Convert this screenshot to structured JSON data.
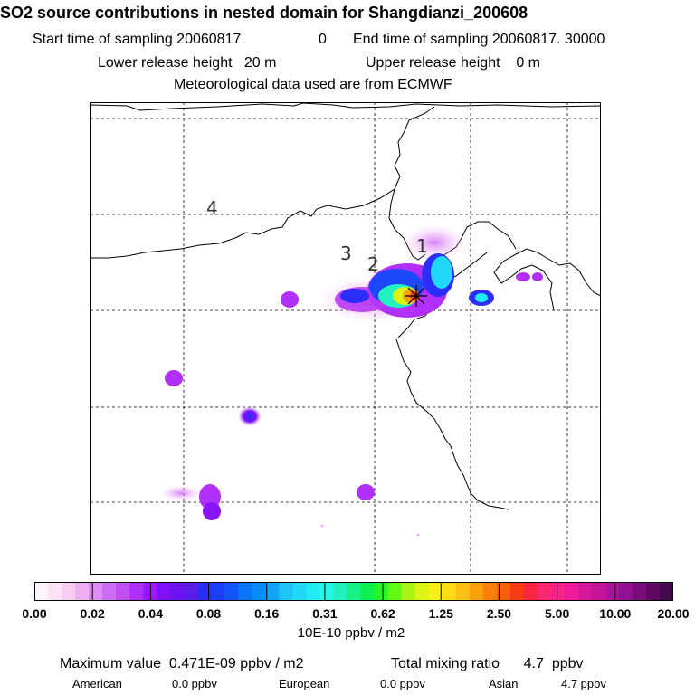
{
  "header": {
    "title": "SO2 source contributions in nested domain for Shangdianzi_200608",
    "start_label": "Start time of sampling 20060817.",
    "start_hour": "0",
    "end_label": "End time of sampling 20060817. 30000",
    "lower_release": "Lower release height   20 m",
    "upper_release": "Upper release height    0 m",
    "met_data": "Meteorological data used are from ECMWF"
  },
  "map": {
    "region_labels": [
      "1",
      "2",
      "3",
      "4"
    ],
    "station_marker": "asterisk-star"
  },
  "colorbar": {
    "ticks": [
      "0.00",
      "0.02",
      "0.04",
      "0.08",
      "0.16",
      "0.31",
      "0.62",
      "1.25",
      "2.50",
      "5.00",
      "10.00",
      "20.00"
    ],
    "unit": "10E-10 ppbv / m2",
    "colors": [
      "#fff4fb",
      "#fde1f6",
      "#f8ccf3",
      "#efb0f2",
      "#dc8ef4",
      "#cc6ef4",
      "#c050f4",
      "#b030f8",
      "#9a18fa",
      "#8010fa",
      "#6c14ee",
      "#5c1ee6",
      "#2a2ef8",
      "#1c40fa",
      "#1254fa",
      "#0c74fa",
      "#088cfa",
      "#14a4fa",
      "#20c4fa",
      "#20d8f8",
      "#20ecf4",
      "#26f8e4",
      "#22f0c0",
      "#18f088",
      "#0cf050",
      "#26f428",
      "#60fa14",
      "#a8f414",
      "#dcf414",
      "#f8f014",
      "#fcdc14",
      "#fcc014",
      "#fca00c",
      "#fc800c",
      "#fa600c",
      "#fa3c14",
      "#fc2440",
      "#fc2870",
      "#f8248c",
      "#f01c9c",
      "#d8189c",
      "#c4149a",
      "#aa1498",
      "#921092",
      "#7a0c7c",
      "#5e0a62",
      "#420a48"
    ]
  },
  "footer": {
    "max_value": "Maximum value  0.471E-09 ppbv / m2",
    "total_mixing": "Total mixing ratio      4.7  ppbv",
    "american_label": "American",
    "american_value": "0.0 ppbv",
    "european_label": "European",
    "european_value": "0.0 ppbv",
    "asian_label": "Asian",
    "asian_value": "4.7 ppbv"
  }
}
